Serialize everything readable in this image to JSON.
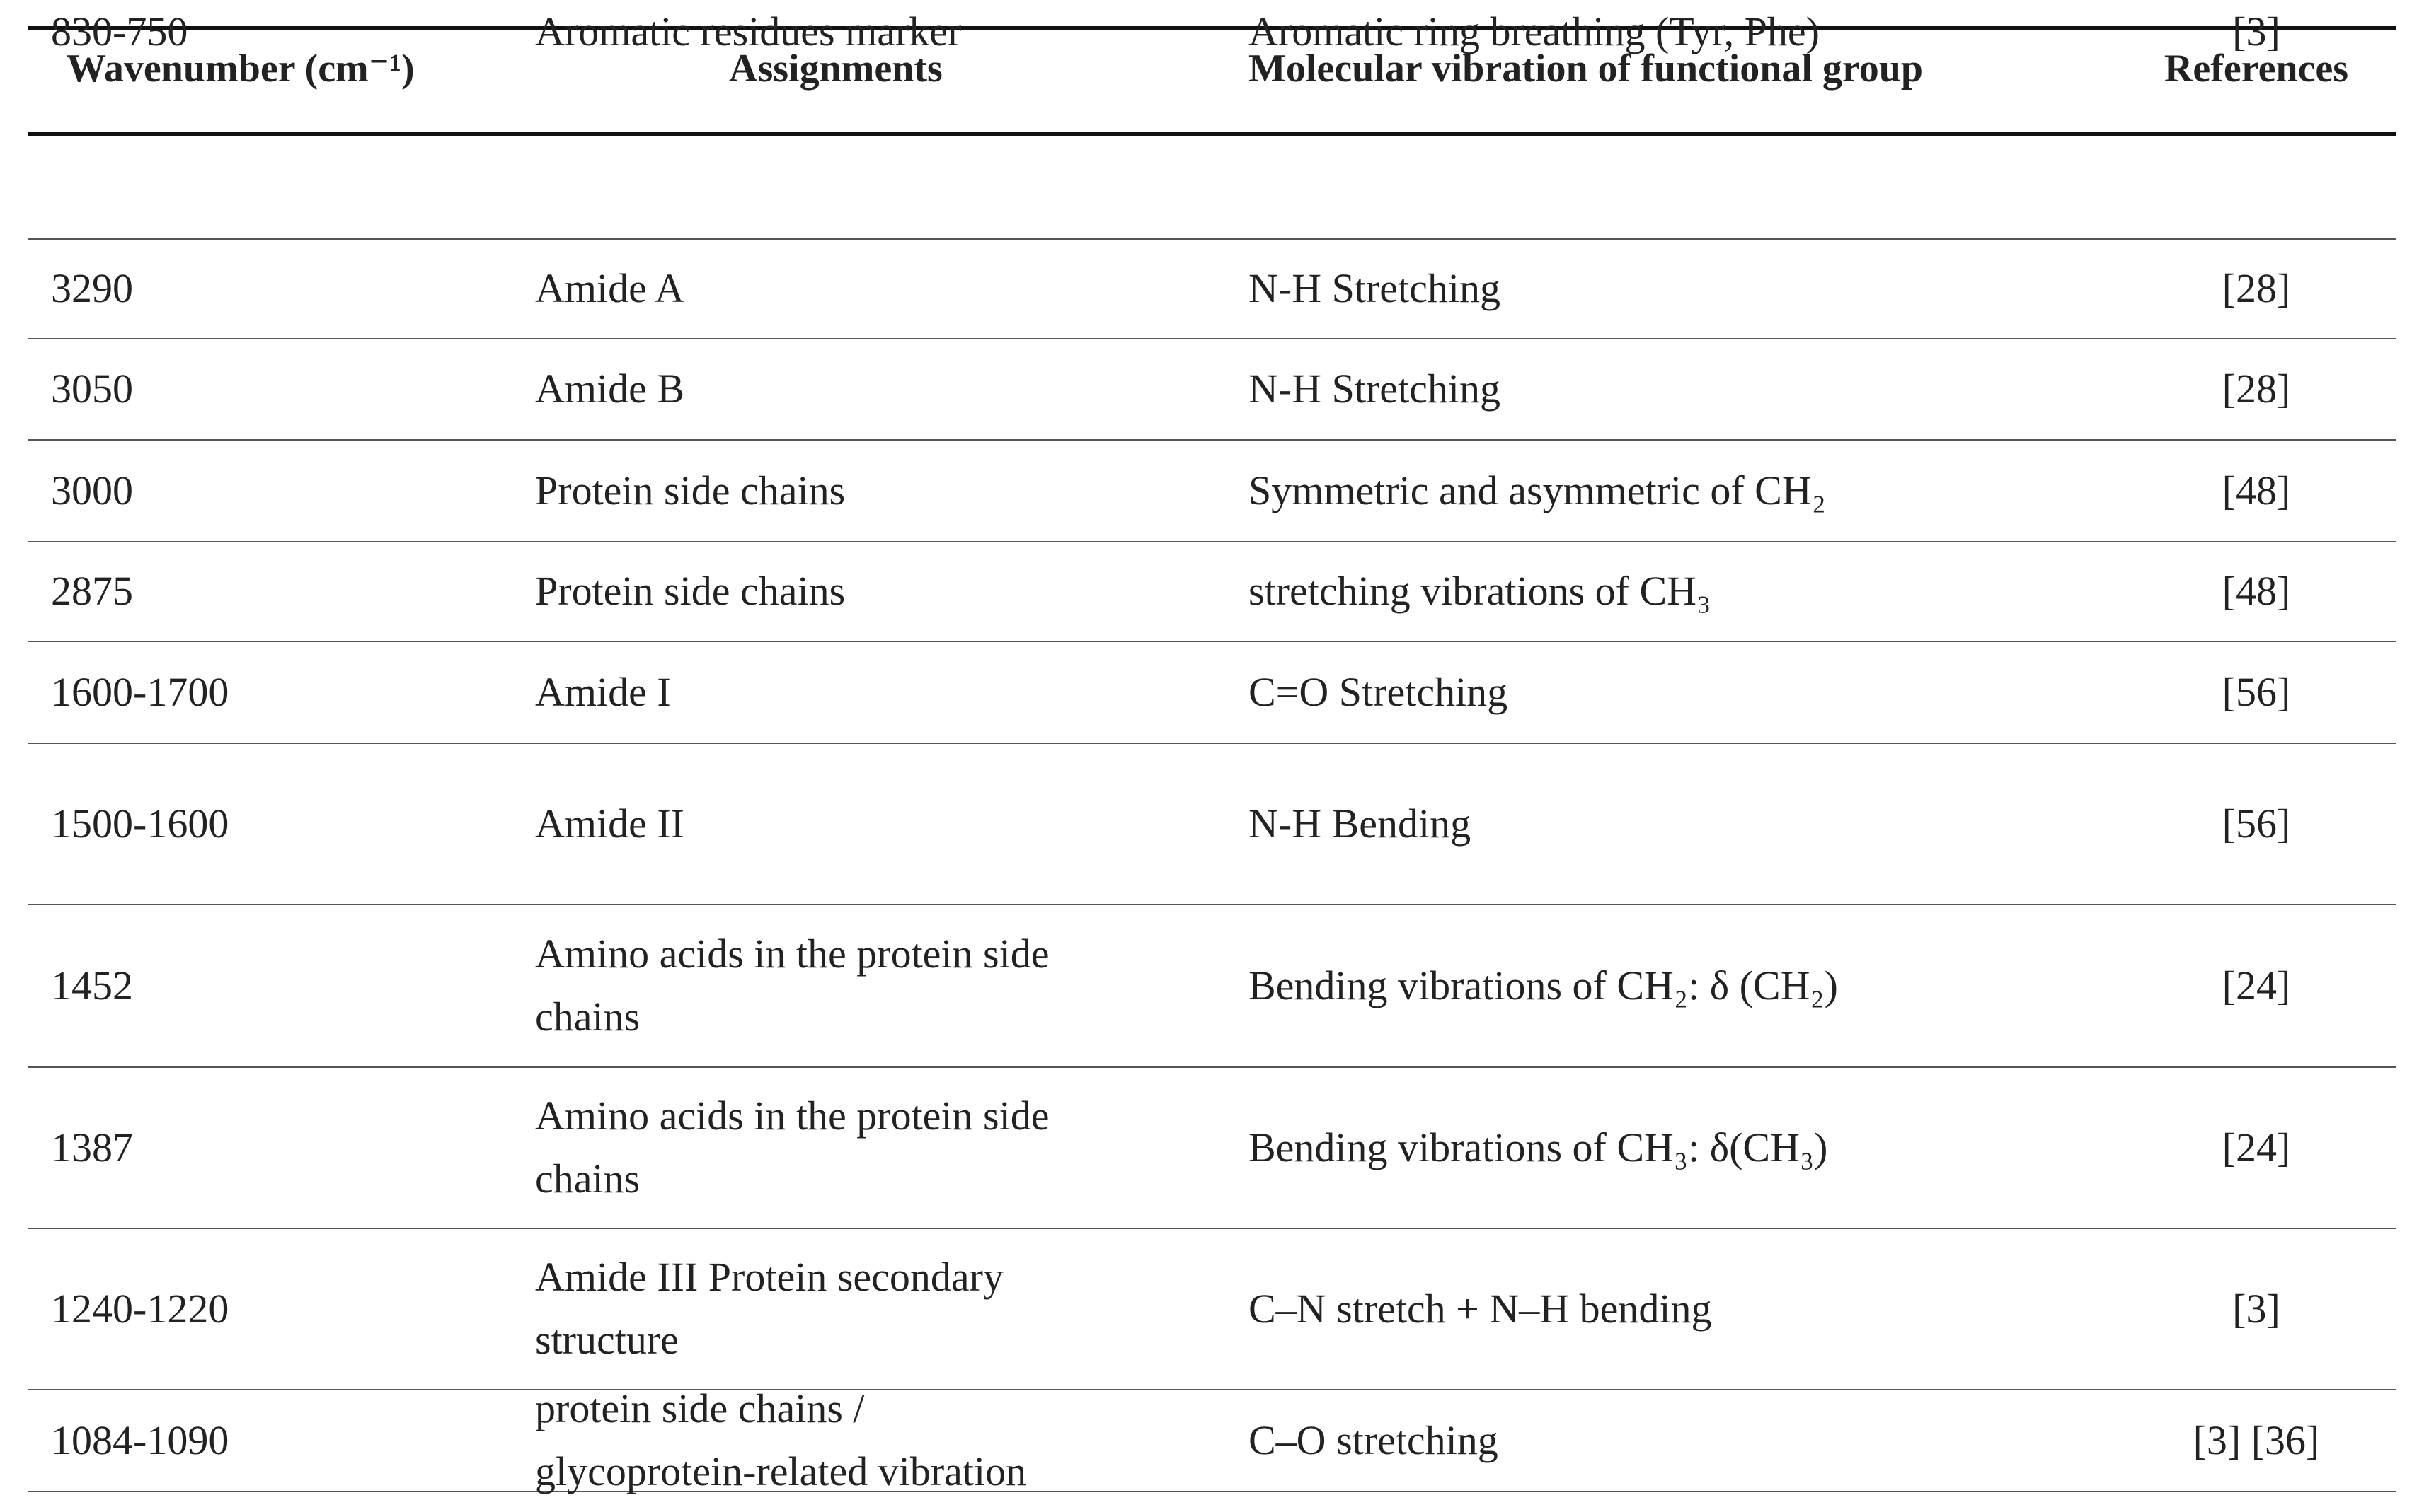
{
  "table": {
    "header": [
      "Wavenumber (cm⁻¹)",
      "Assignments",
      "Molecular vibration of functional group",
      "References"
    ],
    "rows": [
      [
        "3290",
        "Amide A",
        "N-H Stretching",
        "[28]"
      ],
      [
        "3050",
        "Amide B",
        "N-H Stretching",
        "[28]"
      ],
      [
        "3000",
        "Protein side chains",
        "Symmetric and asymmetric of CH₂",
        "[48]"
      ],
      [
        "2875",
        "Protein side chains",
        "stretching vibrations of CH₃",
        "[48]"
      ],
      [
        "1600-1700",
        "Amide I",
        "C=O Stretching",
        "[56]"
      ],
      [
        "1500-1600",
        "Amide II",
        "N-H Bending",
        "[56]"
      ],
      [
        "1452",
        [
          "Amino acids in the protein side",
          "chains"
        ],
        "Bending vibrations of CH₂: δ (CH₂)",
        "[24]"
      ],
      [
        "1387",
        [
          "Amino acids in the protein side",
          "chains"
        ],
        "Bending vibrations of CH₃: δ(CH₃)",
        "[24]"
      ],
      [
        "1240-1220",
        [
          "Amide III Protein secondary",
          "structure"
        ],
        "C–N stretch + N–H bending",
        "[3]"
      ],
      [
        "1084-1090",
        [
          "protein side chains /",
          "glycoprotein-related vibration"
        ],
        "C–O stretching",
        "[3] [36]"
      ],
      [
        "830-750",
        "Aromatic residues marker",
        "Aromatic ring breathing (Tyr, Phe)",
        "[3]"
      ]
    ]
  }
}
